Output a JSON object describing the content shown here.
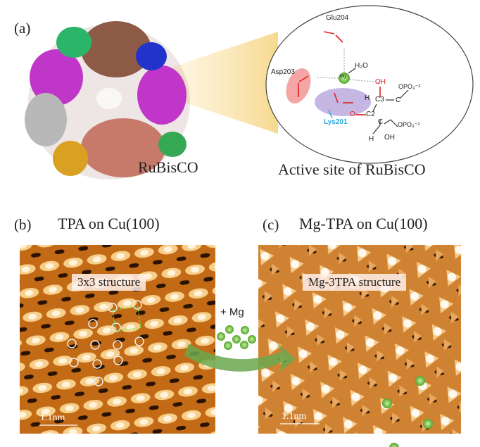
{
  "panel_a": {
    "label": "(a)",
    "protein_name": "RuBisCO",
    "active_site_caption": "Active site of RuBisCO",
    "residues": {
      "glu": "Glu204",
      "asp": "Asp203",
      "lys": "Lys201"
    },
    "chem_labels": {
      "water": "H₂O",
      "mg": "Mg",
      "oh1": "OH",
      "h1": "H",
      "c3": "C3",
      "c_a": "C",
      "opo1": "OPO₃⁻²",
      "o_c2": "O",
      "c2": "C2",
      "c_b": "C",
      "opo2": "OPO₃⁻²",
      "h2": "H",
      "oh2": "OH"
    }
  },
  "panel_b": {
    "label": "(b)",
    "title": "TPA on Cu(100)",
    "box_label": "3x3 structure",
    "scale_bar": "1.1nm"
  },
  "panel_c": {
    "label": "(c)",
    "title": "Mg-TPA on Cu(100)",
    "box_label": "Mg-3TPA structure",
    "scale_bar": "1.1nm"
  },
  "transition": {
    "label": "+ Mg"
  },
  "colors": {
    "mg_green": "#7cc242",
    "arrow_green": "#6aa84f",
    "stm_orange": "#c8731e",
    "highlight_red": "#f08080",
    "highlight_purple": "#b39ddb",
    "lys_blue": "#29a8e0"
  }
}
